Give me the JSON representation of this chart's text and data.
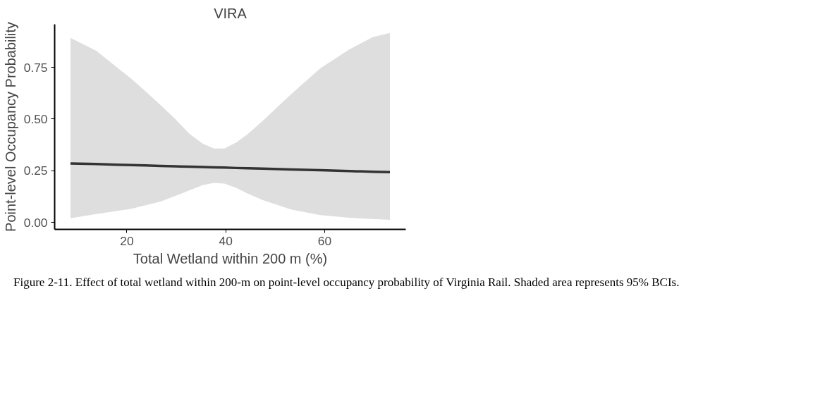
{
  "chart_data": {
    "type": "line",
    "title": "VIRA",
    "xlabel": "Total Wetland within 200 m (%)",
    "ylabel": "Point-level Occupancy Probability",
    "x": [
      8.6,
      13.8,
      17.9,
      20.9,
      23.8,
      26.8,
      29.7,
      32.6,
      35.3,
      37.6,
      39.7,
      42.1,
      44.4,
      47.4,
      53.2,
      59.1,
      65.0,
      69.7,
      73.2
    ],
    "series": [
      {
        "color": "#333333",
        "values": [
          0.285,
          0.282,
          0.279,
          0.277,
          0.275,
          0.273,
          0.271,
          0.269,
          0.268,
          0.266,
          0.265,
          0.263,
          0.262,
          0.26,
          0.256,
          0.252,
          0.248,
          0.245,
          0.243
        ],
        "lower": [
          0.02,
          0.04,
          0.055,
          0.066,
          0.083,
          0.101,
          0.127,
          0.154,
          0.18,
          0.191,
          0.188,
          0.167,
          0.14,
          0.108,
          0.062,
          0.035,
          0.022,
          0.016,
          0.012
        ],
        "upper": [
          0.892,
          0.83,
          0.752,
          0.695,
          0.633,
          0.568,
          0.502,
          0.43,
          0.381,
          0.357,
          0.357,
          0.386,
          0.426,
          0.489,
          0.62,
          0.745,
          0.837,
          0.896,
          0.916
        ]
      }
    ],
    "xlim": [
      5.4,
      76.4
    ],
    "ylim": [
      -0.034,
      0.958
    ],
    "xticks": [
      20,
      40,
      60
    ],
    "yticks": [
      {
        "value": 0,
        "label": "0.00"
      },
      {
        "value": 0.25,
        "label": "0.25"
      },
      {
        "value": 0.5,
        "label": "0.50"
      },
      {
        "value": 0.75,
        "label": "0.75"
      }
    ],
    "grid": false,
    "annotations": [
      "Figure 2-11. Effect of total wetland within 200-m on point-level occupancy probability of Virginia Rail. Shaded area represents 95% BCIs."
    ]
  }
}
